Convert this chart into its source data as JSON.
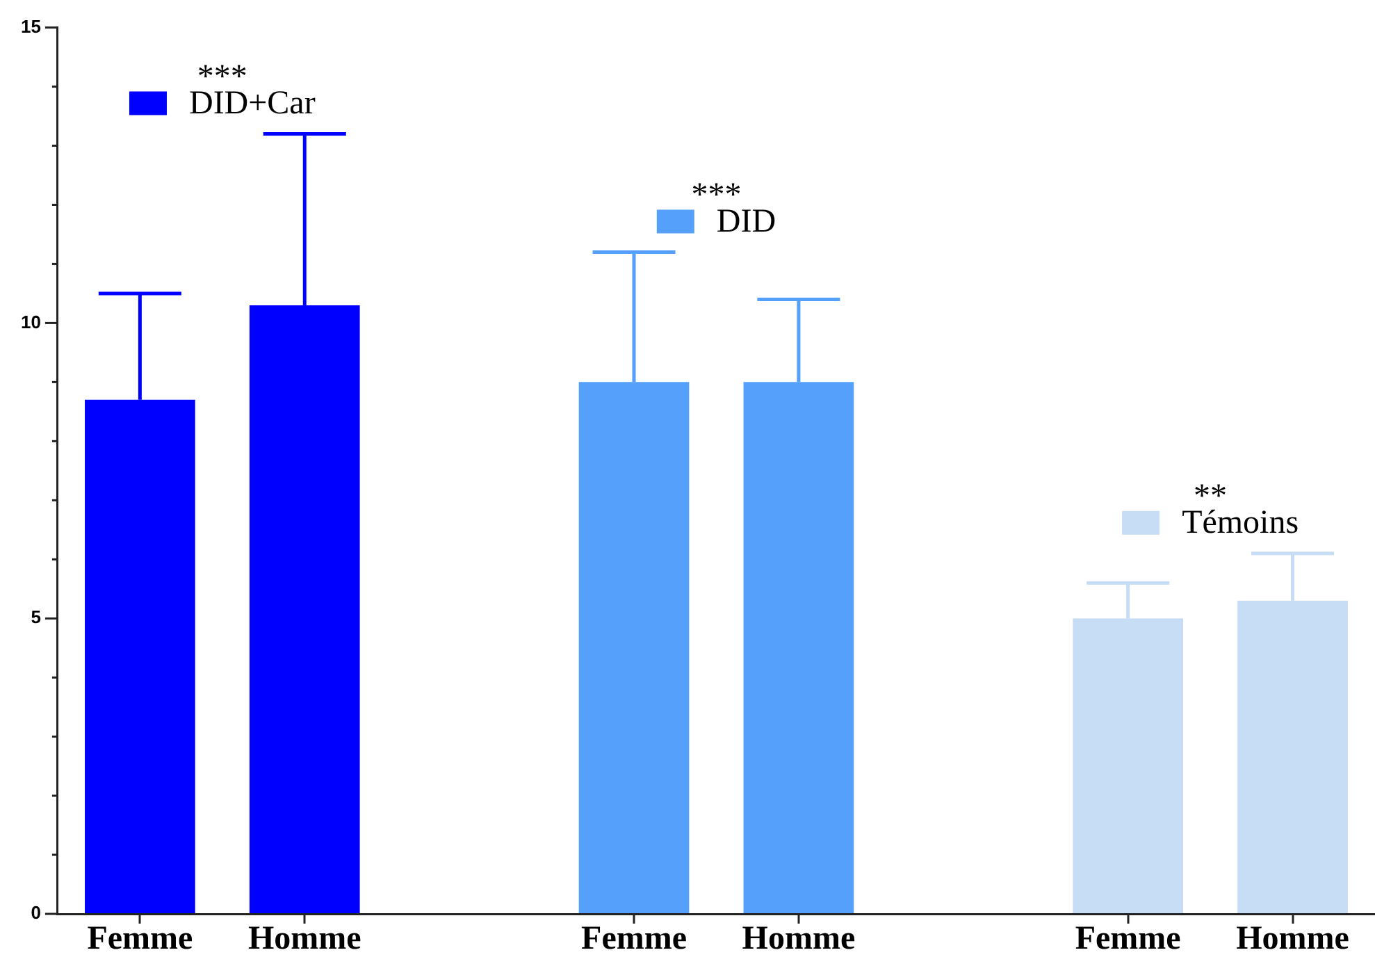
{
  "chart_data": {
    "type": "bar",
    "categories": [
      "Femme",
      "Homme",
      null,
      "Femme",
      "Homme",
      null,
      "Femme",
      "Homme"
    ],
    "series": [
      {
        "name": "DID+Car",
        "color": "#0000ff",
        "values": [
          8.7,
          10.3,
          null,
          null,
          null,
          null,
          null,
          null
        ],
        "errors": [
          [
            8.7,
            10.5
          ],
          [
            10.3,
            13.2
          ],
          null,
          null,
          null,
          null,
          null,
          null
        ]
      },
      {
        "name": "DID",
        "color": "#55a0fb",
        "values": [
          null,
          null,
          null,
          9.0,
          9.0,
          null,
          null,
          null
        ],
        "errors": [
          null,
          null,
          null,
          [
            9.0,
            11.2
          ],
          [
            9.0,
            10.4
          ],
          null,
          null,
          null
        ]
      },
      {
        "name": "Témoins",
        "color": "#c7ddf6",
        "values": [
          null,
          null,
          null,
          null,
          null,
          null,
          5.0,
          5.3
        ],
        "errors": [
          null,
          null,
          null,
          null,
          null,
          null,
          [
            5.0,
            5.6
          ],
          [
            5.3,
            6.1
          ]
        ]
      }
    ],
    "ylim": [
      0,
      15
    ],
    "yticks": [
      0,
      {
        "value": 1,
        "label": null
      },
      {
        "value": 2,
        "label": null
      },
      {
        "value": 3,
        "label": null
      },
      {
        "value": 4,
        "label": null
      },
      5,
      {
        "value": 6,
        "label": null
      },
      {
        "value": 7,
        "label": null
      },
      {
        "value": 8,
        "label": null
      },
      {
        "value": 9,
        "label": null
      },
      10,
      {
        "value": 11,
        "label": null
      },
      {
        "value": 12,
        "label": null
      },
      {
        "value": 13,
        "label": null
      },
      {
        "value": 14,
        "label": null
      },
      15
    ],
    "annotations": [
      "***",
      "***",
      "**"
    ],
    "legend": "top",
    "grid": false
  }
}
